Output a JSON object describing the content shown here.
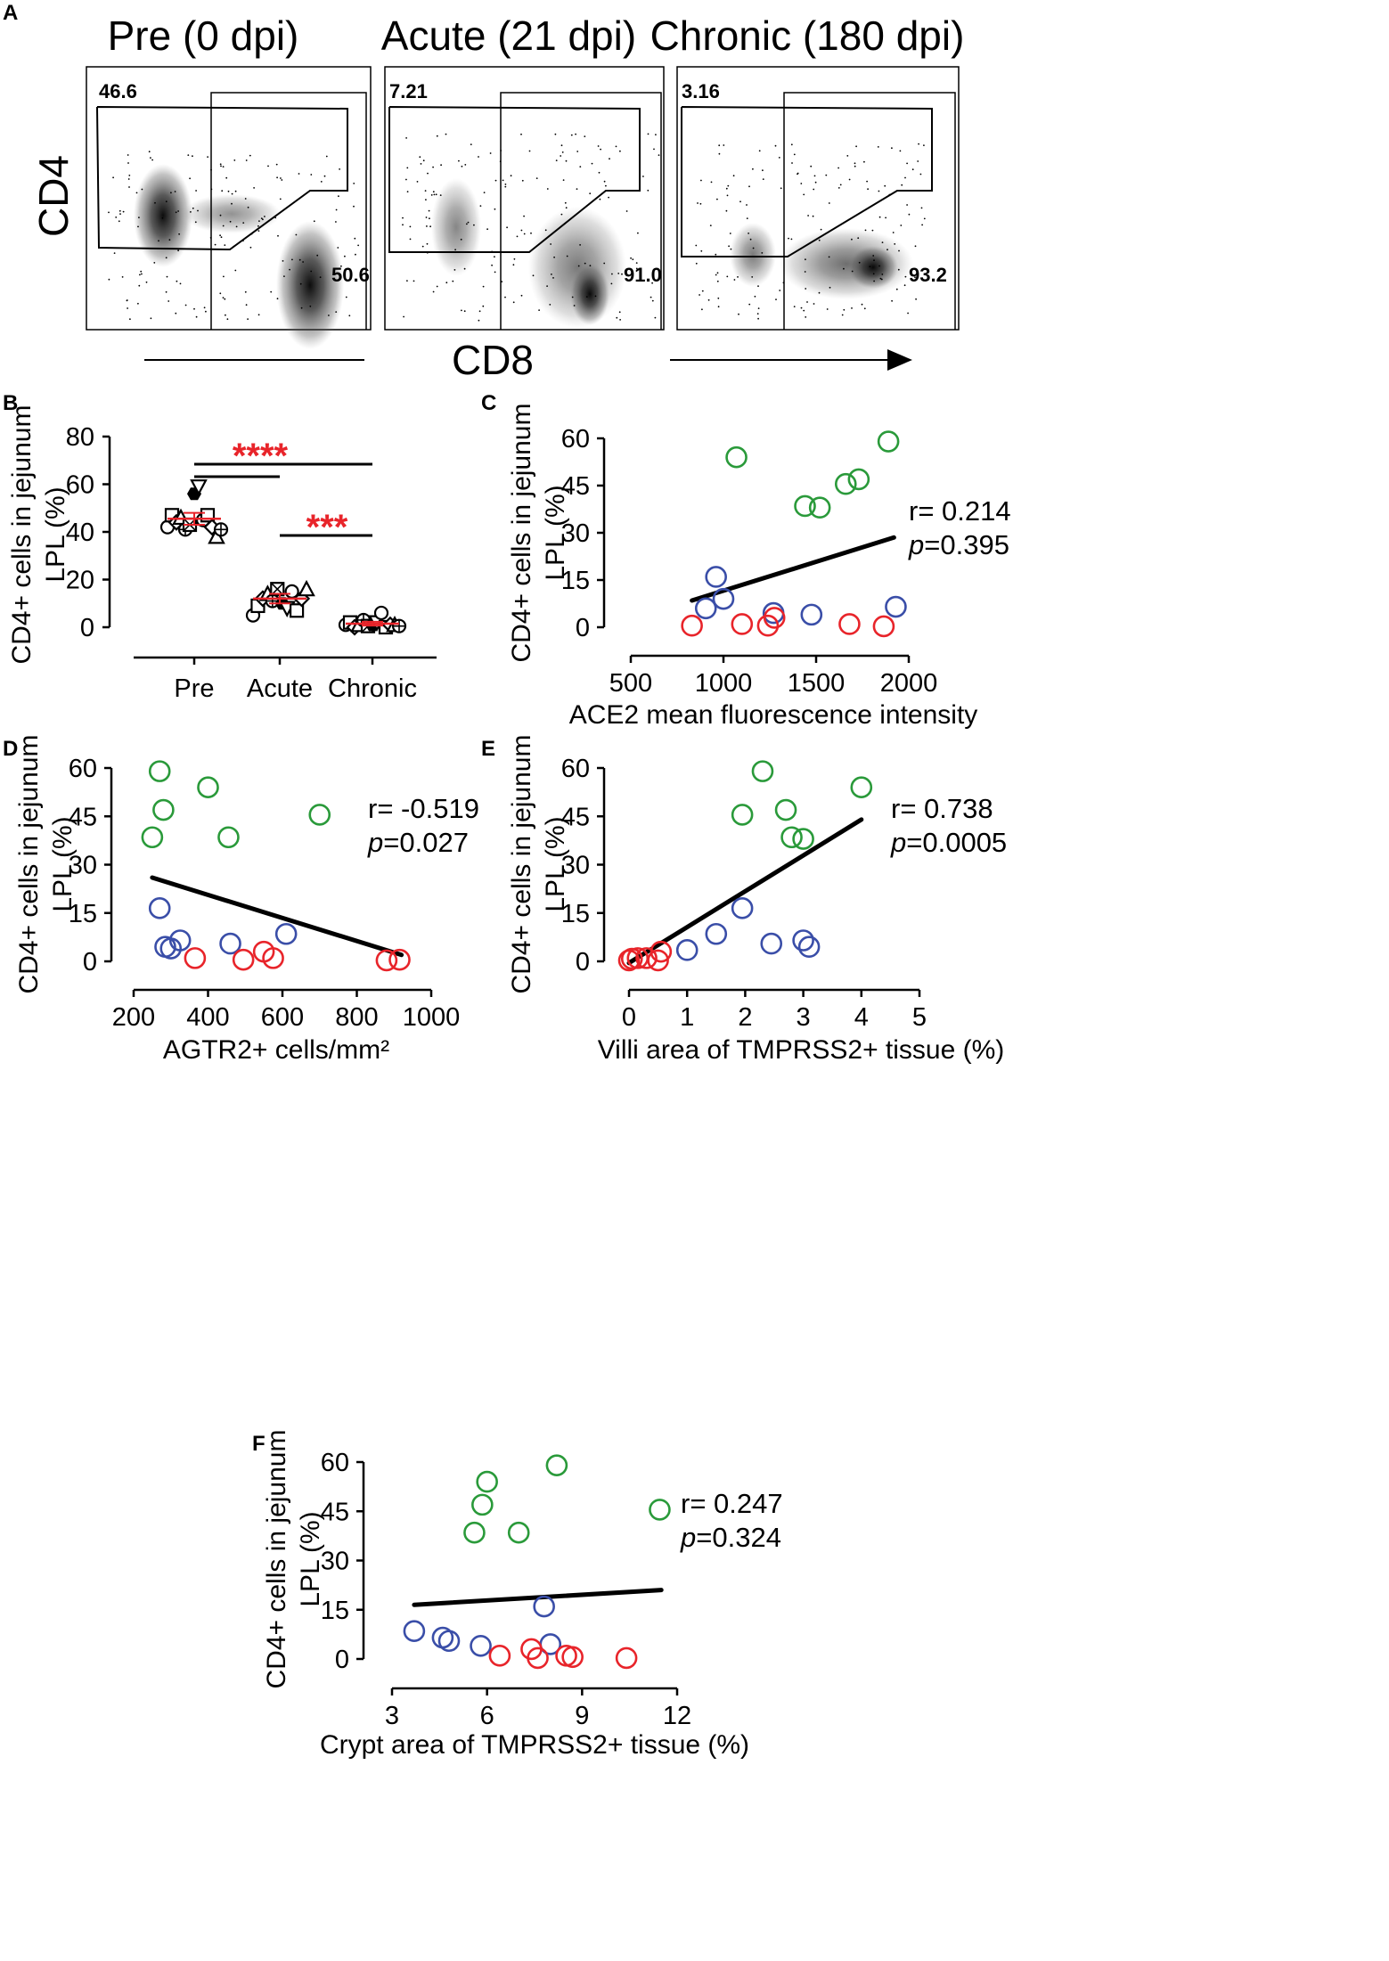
{
  "panel_labels": {
    "A": "A",
    "B": "B",
    "C": "C",
    "D": "D",
    "E": "E",
    "F": "F"
  },
  "colors": {
    "green": "#2a9a3a",
    "blue": "#3a4ea8",
    "red": "#e8242a",
    "black": "#000000",
    "mean_line": "#e8242a"
  },
  "flow": {
    "y_label": "CD4",
    "x_label": "CD8",
    "panels": [
      {
        "title": "Pre (0 dpi)",
        "cd4_value": "46.6",
        "cd8_value": "50.6"
      },
      {
        "title": "Acute (21 dpi)",
        "cd4_value": "7.21",
        "cd8_value": "91.0"
      },
      {
        "title": "Chronic (180 dpi)",
        "cd4_value": "3.16",
        "cd8_value": "93.2"
      }
    ]
  },
  "chart_data": [
    {
      "id": "B",
      "type": "scatter",
      "title": "",
      "ylabel_line1": "CD4+ cells in jejunum",
      "ylabel_line2": "LPL (%)",
      "ylim": [
        0,
        80
      ],
      "yticks": [
        "0",
        "20",
        "40",
        "60",
        "80"
      ],
      "categories": [
        "Pre",
        "Acute",
        "Chronic"
      ],
      "groups": [
        {
          "name": "Pre",
          "mean": 45.5,
          "sem": 2.5,
          "values": [
            42,
            47,
            44,
            46,
            41,
            43,
            56,
            59,
            45,
            47,
            42,
            38,
            41
          ]
        },
        {
          "name": "Acute",
          "mean": 12,
          "sem": 2,
          "values": [
            5,
            9,
            12,
            14,
            11,
            16,
            10,
            8,
            15,
            7,
            12,
            16
          ]
        },
        {
          "name": "Chronic",
          "mean": 1.5,
          "sem": 0.8,
          "values": [
            1,
            2,
            0,
            1,
            3,
            0.5,
            1,
            2,
            6,
            0,
            1,
            1,
            0.5
          ]
        }
      ],
      "comparisons": [
        {
          "label": "****",
          "from": "Pre",
          "to": "Chronic"
        },
        {
          "label": "",
          "from": "Pre",
          "to": "Acute"
        },
        {
          "label": "***",
          "from": "Acute",
          "to": "Chronic"
        }
      ]
    },
    {
      "id": "C",
      "type": "scatter",
      "xlabel": "ACE2 mean fluorescence intensity",
      "ylabel_line1": "CD4+ cells in jejunum",
      "ylabel_line2": "LPL (%)",
      "xlim": [
        500,
        2000
      ],
      "ylim": [
        0,
        60
      ],
      "xticks": [
        "500",
        "1000",
        "1500",
        "2000"
      ],
      "yticks": [
        "0",
        "15",
        "30",
        "45",
        "60"
      ],
      "r_text": "r= 0.214",
      "p_italic": "p",
      "p_value": "=0.395",
      "fit": [
        [
          830,
          8.5
        ],
        [
          1920,
          28.5
        ]
      ],
      "series": [
        {
          "name": "Pre",
          "color": "green",
          "points": [
            [
              1070,
              54
            ],
            [
              1440,
              38.5
            ],
            [
              1520,
              38
            ],
            [
              1660,
              45.5
            ],
            [
              1730,
              47
            ],
            [
              1890,
              59
            ]
          ]
        },
        {
          "name": "Acute",
          "color": "blue",
          "points": [
            [
              960,
              16
            ],
            [
              905,
              6
            ],
            [
              1000,
              9
            ],
            [
              1270,
              4.5
            ],
            [
              1475,
              4
            ],
            [
              1930,
              6.5
            ]
          ]
        },
        {
          "name": "Chronic",
          "color": "red",
          "points": [
            [
              830,
              0.5
            ],
            [
              1100,
              1
            ],
            [
              1240,
              0.5
            ],
            [
              1275,
              3
            ],
            [
              1680,
              1
            ],
            [
              1865,
              0.3
            ]
          ]
        }
      ]
    },
    {
      "id": "D",
      "type": "scatter",
      "xlabel": "AGTR2+ cells/mm²",
      "ylabel_line1": "CD4+ cells in jejunum",
      "ylabel_line2": "LPL (%)",
      "xlim": [
        200,
        1000
      ],
      "ylim": [
        0,
        60
      ],
      "xticks": [
        "200",
        "400",
        "600",
        "800",
        "1000"
      ],
      "yticks": [
        "0",
        "15",
        "30",
        "45",
        "60"
      ],
      "r_text": "r= -0.519",
      "p_italic": "p",
      "p_value": "=0.027",
      "fit": [
        [
          250,
          26
        ],
        [
          920,
          2
        ]
      ],
      "series": [
        {
          "name": "Pre",
          "color": "green",
          "points": [
            [
              250,
              38.5
            ],
            [
              270,
              59
            ],
            [
              280,
              47
            ],
            [
              400,
              54
            ],
            [
              455,
              38.5
            ],
            [
              700,
              45.5
            ]
          ]
        },
        {
          "name": "Acute",
          "color": "blue",
          "points": [
            [
              270,
              16.5
            ],
            [
              285,
              4.5
            ],
            [
              300,
              4
            ],
            [
              325,
              6.5
            ],
            [
              460,
              5.5
            ],
            [
              610,
              8.5
            ]
          ]
        },
        {
          "name": "Chronic",
          "color": "red",
          "points": [
            [
              365,
              1
            ],
            [
              495,
              0.5
            ],
            [
              550,
              3
            ],
            [
              575,
              1
            ],
            [
              880,
              0.3
            ],
            [
              915,
              0.5
            ]
          ]
        }
      ]
    },
    {
      "id": "E",
      "type": "scatter",
      "xlabel": "Villi area of TMPRSS2+ tissue (%)",
      "ylabel_line1": "CD4+ cells in jejunum",
      "ylabel_line2": "LPL (%)",
      "xlim": [
        0,
        5
      ],
      "ylim": [
        0,
        60
      ],
      "xticks": [
        "0",
        "1",
        "2",
        "3",
        "4",
        "5"
      ],
      "yticks": [
        "0",
        "15",
        "30",
        "45",
        "60"
      ],
      "r_text": "r= 0.738",
      "p_italic": "p",
      "p_value": "=0.0005",
      "fit": [
        [
          0,
          -0.5
        ],
        [
          4,
          44
        ]
      ],
      "series": [
        {
          "name": "Pre",
          "color": "green",
          "points": [
            [
              1.95,
              45.5
            ],
            [
              2.3,
              59
            ],
            [
              2.7,
              47
            ],
            [
              2.8,
              38.5
            ],
            [
              3.0,
              38
            ],
            [
              4.0,
              54
            ]
          ]
        },
        {
          "name": "Acute",
          "color": "blue",
          "points": [
            [
              1.0,
              3.5
            ],
            [
              1.5,
              8.5
            ],
            [
              1.95,
              16.5
            ],
            [
              2.45,
              5.5
            ],
            [
              3.0,
              6.5
            ],
            [
              3.1,
              4.5
            ]
          ]
        },
        {
          "name": "Chronic",
          "color": "red",
          "points": [
            [
              0.0,
              0.3
            ],
            [
              0.05,
              0.8
            ],
            [
              0.15,
              1
            ],
            [
              0.3,
              1
            ],
            [
              0.5,
              0.3
            ],
            [
              0.55,
              3
            ]
          ]
        }
      ]
    },
    {
      "id": "F",
      "type": "scatter",
      "xlabel": "Crypt area of TMPRSS2+ tissue (%)",
      "ylabel_line1": "CD4+ cells in jejunum",
      "ylabel_line2": "LPL (%)",
      "xlim": [
        3,
        12
      ],
      "ylim": [
        0,
        60
      ],
      "xticks": [
        "3",
        "6",
        "9",
        "12"
      ],
      "yticks": [
        "0",
        "15",
        "30",
        "45",
        "60"
      ],
      "r_text": "r= 0.247",
      "p_italic": "p",
      "p_value": "=0.324",
      "fit": [
        [
          3.7,
          16.5
        ],
        [
          11.5,
          21
        ]
      ],
      "series": [
        {
          "name": "Pre",
          "color": "green",
          "points": [
            [
              5.6,
              38.5
            ],
            [
              5.85,
              47
            ],
            [
              6.0,
              54
            ],
            [
              7.0,
              38.5
            ],
            [
              8.2,
              59
            ],
            [
              11.45,
              45.5
            ]
          ]
        },
        {
          "name": "Acute",
          "color": "blue",
          "points": [
            [
              3.7,
              8.5
            ],
            [
              4.6,
              6.5
            ],
            [
              4.8,
              5.5
            ],
            [
              5.8,
              4
            ],
            [
              7.8,
              16
            ],
            [
              8.0,
              4.5
            ]
          ]
        },
        {
          "name": "Chronic",
          "color": "red",
          "points": [
            [
              6.4,
              1
            ],
            [
              7.4,
              3
            ],
            [
              7.6,
              0.3
            ],
            [
              8.5,
              1
            ],
            [
              8.7,
              0.6
            ],
            [
              10.4,
              0.3
            ]
          ]
        }
      ]
    }
  ]
}
